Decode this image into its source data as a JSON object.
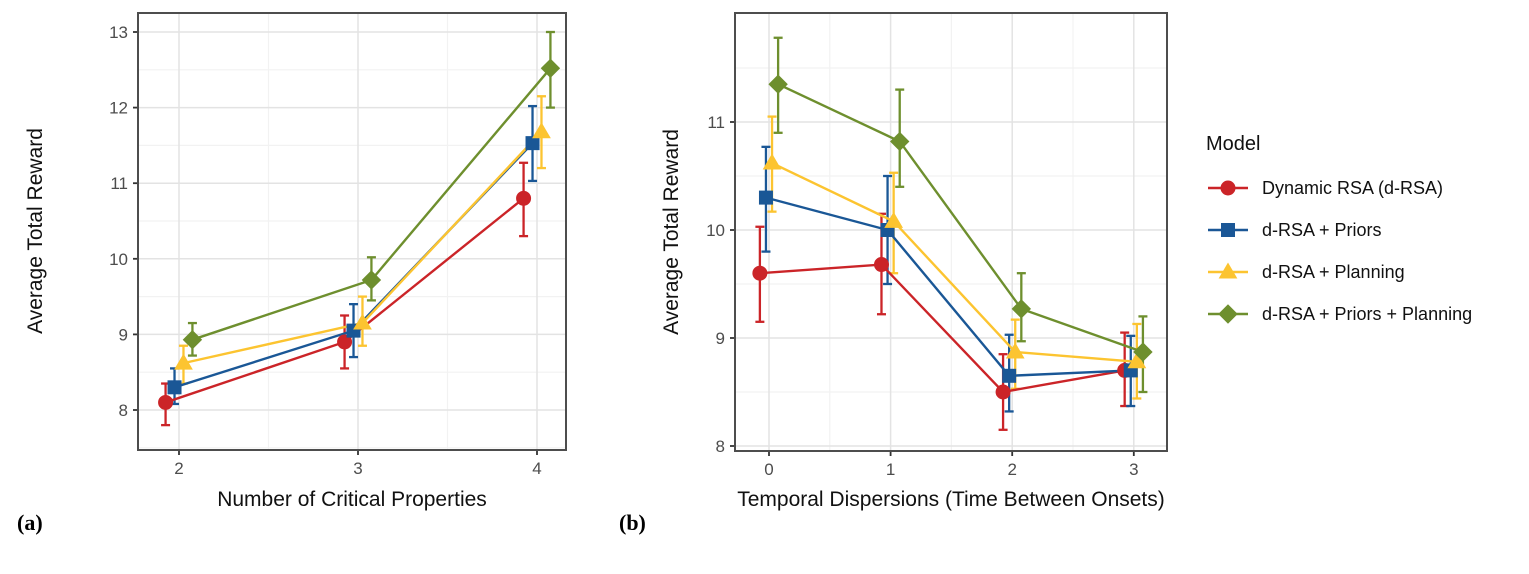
{
  "figure": {
    "panel_labels": {
      "a": "(a)",
      "b": "(b)"
    },
    "background": "#FFFFFF"
  },
  "legend": {
    "title": "Model",
    "entries": [
      {
        "label": "Dynamic RSA (d-RSA)",
        "marker": "circle",
        "color": "#CB2428"
      },
      {
        "label": "d-RSA + Priors",
        "marker": "square",
        "color": "#1A5796"
      },
      {
        "label": "d-RSA + Planning",
        "marker": "triangle",
        "color": "#FCC430"
      },
      {
        "label": "d-RSA + Priors + Planning",
        "marker": "diamond",
        "color": "#6E8F2E"
      }
    ]
  },
  "chart_data": [
    {
      "id": "a",
      "type": "line",
      "title": "",
      "xlabel": "Number of Critical Properties",
      "ylabel": "Average Total Reward",
      "categories": [
        2,
        3,
        4
      ],
      "xticks": [
        2,
        3,
        4
      ],
      "yticks": [
        8,
        9,
        10,
        11,
        12,
        13
      ],
      "xlim": [
        1.78,
        4.17
      ],
      "ylim": [
        7.45,
        13.26
      ],
      "grid": "major+minor",
      "legend_position": "none",
      "series": [
        {
          "name": "Dynamic RSA (d-RSA)",
          "marker": "circle",
          "color": "#CB2428",
          "values": [
            8.1,
            8.9,
            10.8
          ],
          "err_lo": [
            7.8,
            8.55,
            10.3
          ],
          "err_hi": [
            8.35,
            9.25,
            11.27
          ]
        },
        {
          "name": "d-RSA + Priors",
          "marker": "square",
          "color": "#1A5796",
          "values": [
            8.3,
            9.05,
            11.53
          ],
          "err_lo": [
            8.08,
            8.7,
            11.03
          ],
          "err_hi": [
            8.55,
            9.4,
            12.02
          ]
        },
        {
          "name": "d-RSA + Planning",
          "marker": "triangle",
          "color": "#FCC430",
          "values": [
            8.62,
            9.15,
            11.68
          ],
          "err_lo": [
            8.35,
            8.85,
            11.2
          ],
          "err_hi": [
            8.85,
            9.5,
            12.15
          ]
        },
        {
          "name": "d-RSA + Priors + Planning",
          "marker": "diamond",
          "color": "#6E8F2E",
          "values": [
            8.93,
            9.72,
            12.52
          ],
          "err_lo": [
            8.72,
            9.45,
            12.0
          ],
          "err_hi": [
            9.15,
            10.02,
            13.0
          ]
        }
      ]
    },
    {
      "id": "b",
      "type": "line",
      "title": "",
      "xlabel": "Temporal Dispersions (Time Between Onsets)",
      "ylabel": "Average Total Reward",
      "categories": [
        0,
        1,
        2,
        3
      ],
      "xticks": [
        0,
        1,
        2,
        3
      ],
      "yticks": [
        8,
        9,
        10,
        11
      ],
      "xlim": [
        -0.28,
        3.27
      ],
      "ylim": [
        7.95,
        12.01
      ],
      "grid": "major+minor",
      "legend_position": "right",
      "series": [
        {
          "name": "Dynamic RSA (d-RSA)",
          "marker": "circle",
          "color": "#CB2428",
          "values": [
            9.6,
            9.68,
            8.5,
            8.7
          ],
          "err_lo": [
            9.15,
            9.22,
            8.15,
            8.37
          ],
          "err_hi": [
            10.03,
            10.15,
            8.85,
            9.05
          ]
        },
        {
          "name": "d-RSA + Priors",
          "marker": "square",
          "color": "#1A5796",
          "values": [
            10.3,
            10.0,
            8.65,
            8.7
          ],
          "err_lo": [
            9.8,
            9.5,
            8.32,
            8.37
          ],
          "err_hi": [
            10.77,
            10.5,
            9.03,
            9.02
          ]
        },
        {
          "name": "d-RSA + Planning",
          "marker": "triangle",
          "color": "#FCC430",
          "values": [
            10.62,
            10.08,
            8.87,
            8.78
          ],
          "err_lo": [
            10.17,
            9.6,
            8.53,
            8.44
          ],
          "err_hi": [
            11.05,
            10.53,
            9.17,
            9.13
          ]
        },
        {
          "name": "d-RSA + Priors + Planning",
          "marker": "diamond",
          "color": "#6E8F2E",
          "values": [
            11.35,
            10.82,
            9.27,
            8.87
          ],
          "err_lo": [
            10.9,
            10.4,
            8.97,
            8.5
          ],
          "err_hi": [
            11.78,
            11.3,
            9.6,
            9.2
          ]
        }
      ]
    }
  ]
}
